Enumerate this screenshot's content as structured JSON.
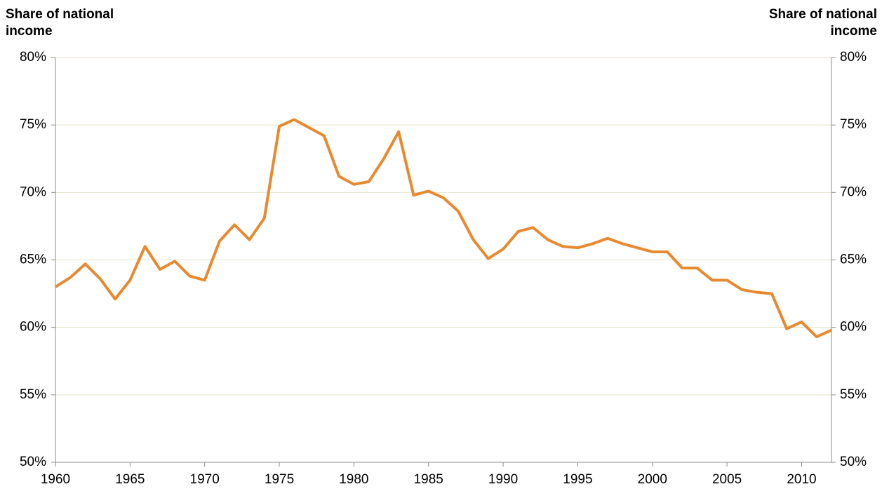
{
  "chart_data": {
    "type": "line",
    "ylabel": "Share of national income",
    "y2label": "Share of national income",
    "x": [
      1960,
      1961,
      1962,
      1963,
      1964,
      1965,
      1966,
      1967,
      1968,
      1969,
      1970,
      1971,
      1972,
      1973,
      1974,
      1975,
      1976,
      1977,
      1978,
      1979,
      1980,
      1981,
      1982,
      1983,
      1984,
      1985,
      1986,
      1987,
      1988,
      1989,
      1990,
      1991,
      1992,
      1993,
      1994,
      1995,
      1996,
      1997,
      1998,
      1999,
      2000,
      2001,
      2002,
      2003,
      2004,
      2005,
      2006,
      2007,
      2008,
      2009,
      2010,
      2011,
      2012
    ],
    "series": [
      {
        "color": "#e8892e",
        "values": [
          63.0,
          63.7,
          64.7,
          63.6,
          62.1,
          63.5,
          66.0,
          64.3,
          64.9,
          63.8,
          63.5,
          66.4,
          67.6,
          66.5,
          68.1,
          74.9,
          75.4,
          74.8,
          74.2,
          71.2,
          70.6,
          70.8,
          72.5,
          74.5,
          69.8,
          70.1,
          69.6,
          68.6,
          66.5,
          65.1,
          65.8,
          67.1,
          67.4,
          66.5,
          66.0,
          65.9,
          66.2,
          66.6,
          66.2,
          65.9,
          65.6,
          65.6,
          64.4,
          64.4,
          63.5,
          63.5,
          62.8,
          62.6,
          62.5,
          59.9,
          60.4,
          59.3,
          59.8
        ]
      }
    ],
    "xlim": [
      1960,
      2012
    ],
    "xticks": [
      1960,
      1965,
      1970,
      1975,
      1980,
      1985,
      1990,
      1995,
      2000,
      2005,
      2010
    ],
    "ylim": [
      50,
      80
    ],
    "yticks": [
      {
        "value": 50,
        "label": "50%"
      },
      {
        "value": 55,
        "label": "55%"
      },
      {
        "value": 60,
        "label": "60%"
      },
      {
        "value": 65,
        "label": "65%"
      },
      {
        "value": 70,
        "label": "70%"
      },
      {
        "value": 75,
        "label": "75%"
      },
      {
        "value": 80,
        "label": "80%"
      }
    ],
    "y2lim": [
      50,
      80
    ],
    "y2ticks": [
      {
        "value": 50,
        "label": "50%"
      },
      {
        "value": 55,
        "label": "55%"
      },
      {
        "value": 60,
        "label": "60%"
      },
      {
        "value": 65,
        "label": "65%"
      },
      {
        "value": 70,
        "label": "70%"
      },
      {
        "value": 75,
        "label": "75%"
      },
      {
        "value": 80,
        "label": "80%"
      }
    ],
    "grid": true
  }
}
